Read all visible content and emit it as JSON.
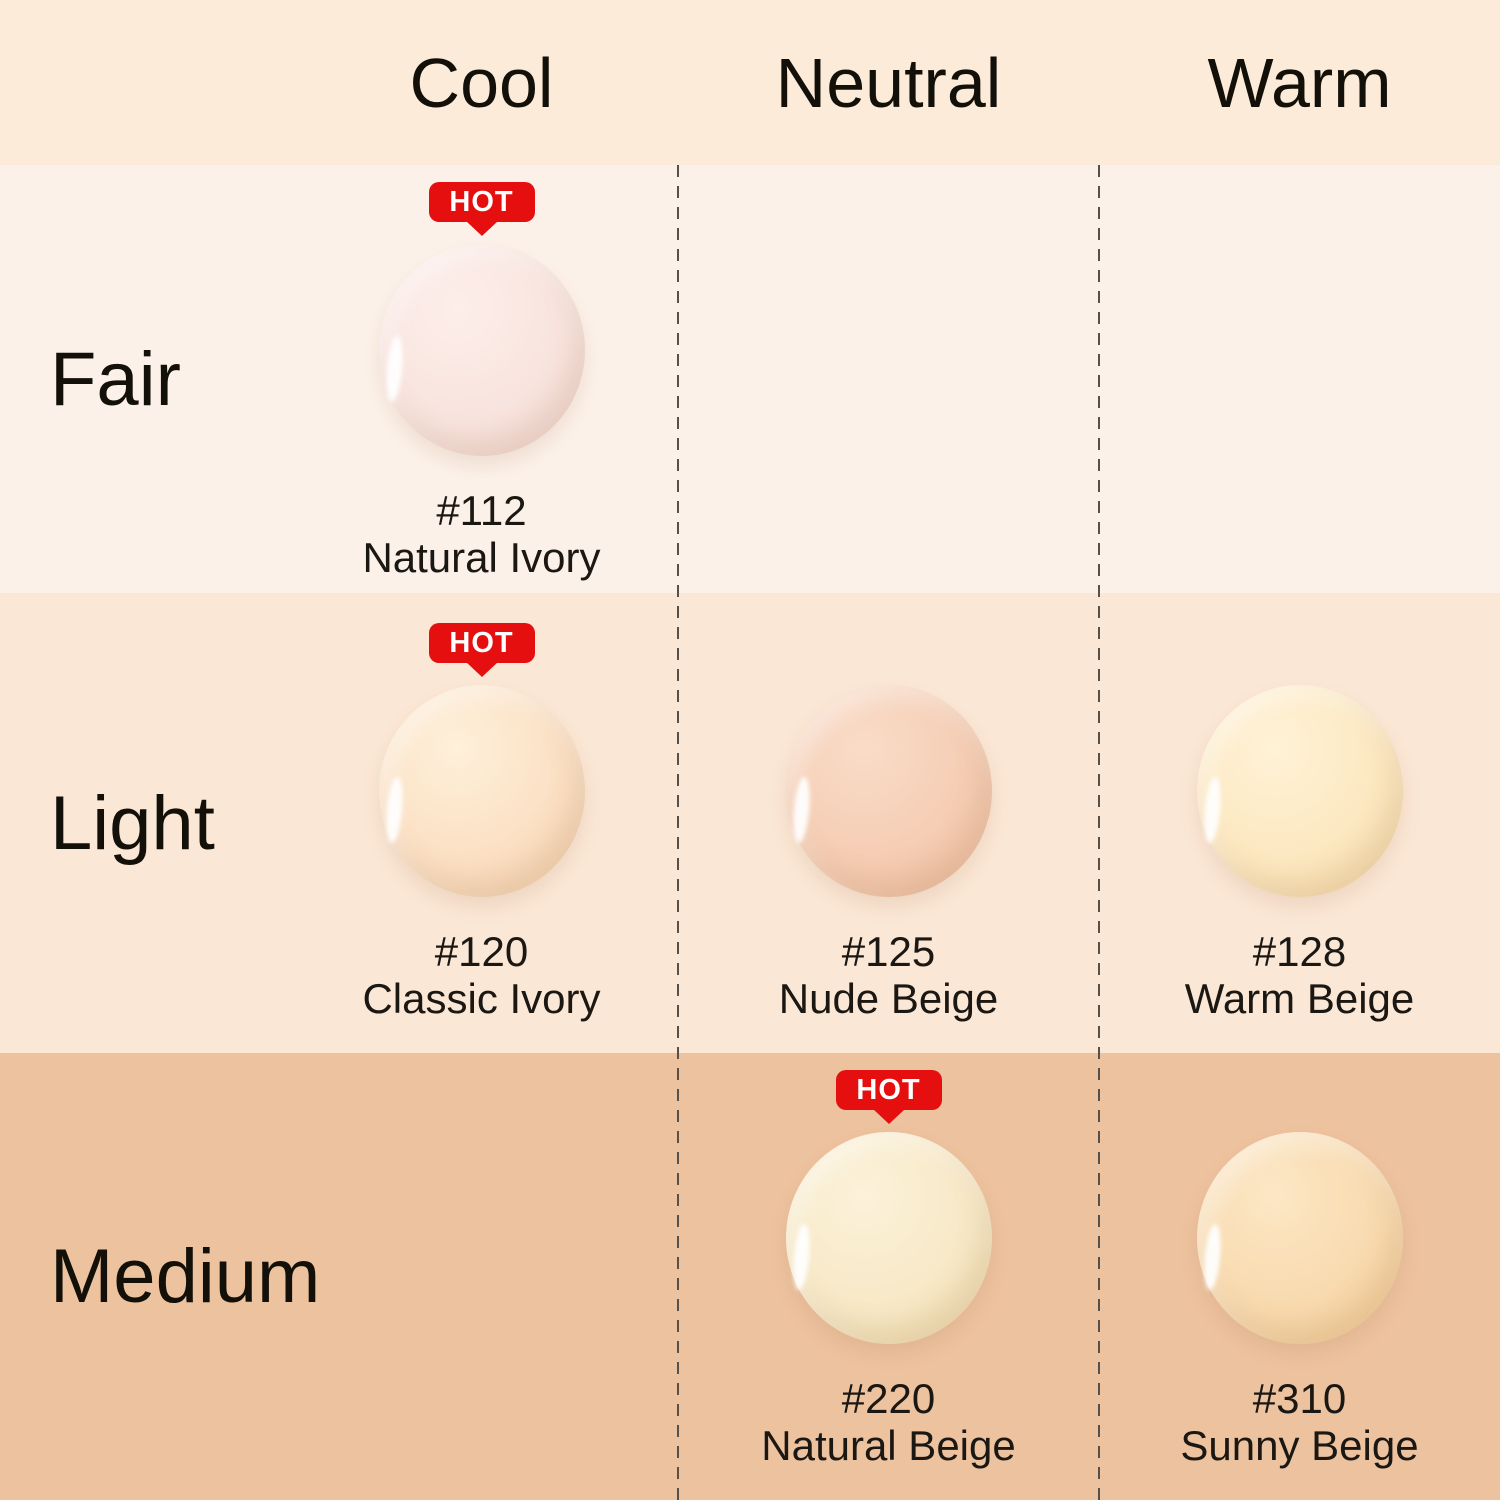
{
  "badge": {
    "label": "HOT",
    "color": "#e60f10"
  },
  "theme": {
    "header_bg": "#fbebd8",
    "row_bg": [
      "#fcf1e9",
      "#fbe7d5",
      "#edc29e"
    ],
    "divider_color": "#55504a",
    "text_color": "#1b1713"
  },
  "chart_data": {
    "type": "table",
    "column_headers": [
      "Cool",
      "Neutral",
      "Warm"
    ],
    "row_headers": [
      "Fair",
      "Light",
      "Medium"
    ],
    "cells": [
      {
        "row": "Fair",
        "column": "Cool",
        "code": "#112",
        "name": "Natural Ivory",
        "hot": true,
        "swatch_color": "#f8e3dd",
        "swatch_light": "#fdeeea",
        "swatch_dark": "#efd2ca"
      },
      {
        "row": "Light",
        "column": "Cool",
        "code": "#120",
        "name": "Classic Ivory",
        "hot": true,
        "swatch_color": "#fbdfc2",
        "swatch_light": "#fef0da",
        "swatch_dark": "#f2cba4"
      },
      {
        "row": "Light",
        "column": "Neutral",
        "code": "#125",
        "name": "Nude Beige",
        "hot": false,
        "swatch_color": "#f5ccb2",
        "swatch_light": "#f9dcc8",
        "swatch_dark": "#eab795"
      },
      {
        "row": "Light",
        "column": "Warm",
        "code": "#128",
        "name": "Warm Beige",
        "hot": false,
        "swatch_color": "#fce7bf",
        "swatch_light": "#fff2d6",
        "swatch_dark": "#f2d49b"
      },
      {
        "row": "Medium",
        "column": "Neutral",
        "code": "#220",
        "name": "Natural Beige",
        "hot": true,
        "swatch_color": "#f7e8c5",
        "swatch_light": "#fcf2da",
        "swatch_dark": "#ecd6a2"
      },
      {
        "row": "Medium",
        "column": "Warm",
        "code": "#310",
        "name": "Sunny Beige",
        "hot": false,
        "swatch_color": "#f8d9ad",
        "swatch_light": "#fce7c5",
        "swatch_dark": "#eec488"
      }
    ]
  }
}
